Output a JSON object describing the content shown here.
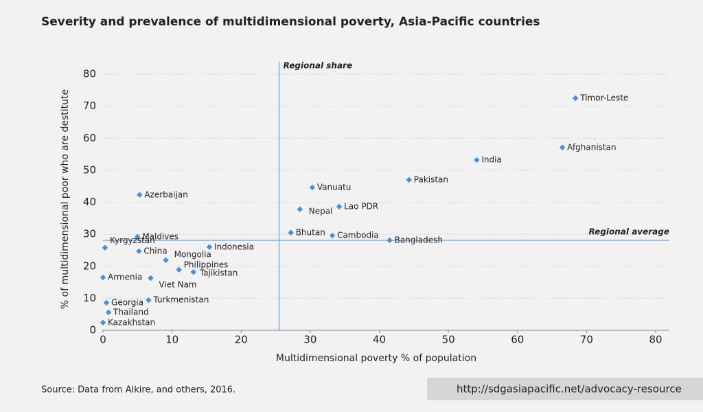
{
  "chart_data": {
    "type": "scatter",
    "title": "Severity and prevalence of multidimensional poverty, Asia-Pacific countries",
    "xlabel": "Multidimensional poverty % of population",
    "ylabel": "% of multidimensional poor who are destitute",
    "series": [
      {
        "color": "#4a90d9",
        "labels": [
          "Timor-Leste",
          "Afghanistan",
          "India",
          "Pakistan",
          "Vanuatu",
          "Lao PDR",
          "Nepal",
          "Bhutan",
          "Cambodia",
          "Bangladesh",
          "Azerbaijan",
          "Maldives",
          "Kyrgyzstan",
          "China",
          "Indonesia",
          "Mongolia",
          "Philippines",
          "Tajikistan",
          "Armenia",
          "Viet Nam",
          "Turkmenistan",
          "Georgia",
          "Thailand",
          "Kazakhstan"
        ],
        "x": [
          68.4,
          66.5,
          54.1,
          44.3,
          30.3,
          34.2,
          28.5,
          27.2,
          33.2,
          41.5,
          5.3,
          5.0,
          0.3,
          5.2,
          15.4,
          9.1,
          11.0,
          13.1,
          0.0,
          6.9,
          6.6,
          0.5,
          0.8,
          0.0
        ],
        "values": [
          72.5,
          57.1,
          53.2,
          47.0,
          44.6,
          38.6,
          37.8,
          30.5,
          29.6,
          28.1,
          42.3,
          29.2,
          25.8,
          24.7,
          26.0,
          21.9,
          18.9,
          18.2,
          16.5,
          16.3,
          9.4,
          8.6,
          5.6,
          2.4
        ]
      }
    ],
    "reference_lines": [
      {
        "text": "Regional share",
        "x": 25.5
      },
      {
        "text": "Regional average",
        "y": 28.1
      }
    ],
    "xlim": [
      0,
      80
    ],
    "xticks": [
      0,
      10,
      20,
      30,
      40,
      50,
      60,
      70,
      80
    ],
    "ylim": [
      0,
      80
    ],
    "yticks": [
      0,
      10,
      20,
      30,
      40,
      50,
      60,
      70,
      80
    ],
    "grid": true
  },
  "footer": {
    "source": "Source: Data from Alkire, and others, 2016.",
    "url": "http://sdgasiapacific.net/advocacy-resource"
  }
}
